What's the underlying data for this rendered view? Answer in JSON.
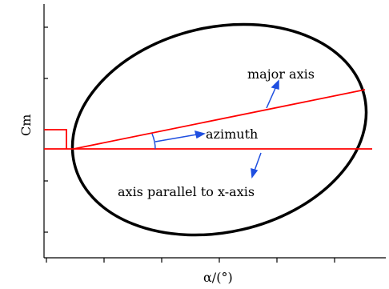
{
  "figure": {
    "y_axis_label": "Cm",
    "x_axis_label": "α/(°)",
    "annotations": {
      "major_axis": "major axis",
      "azimuth": "azimuth",
      "parallel_axis": "axis parallel to x-axis"
    },
    "colors": {
      "ellipse": "#000000",
      "lines": "#ff0000",
      "arrows": "#1f4fe0",
      "axes": "#000000"
    }
  }
}
